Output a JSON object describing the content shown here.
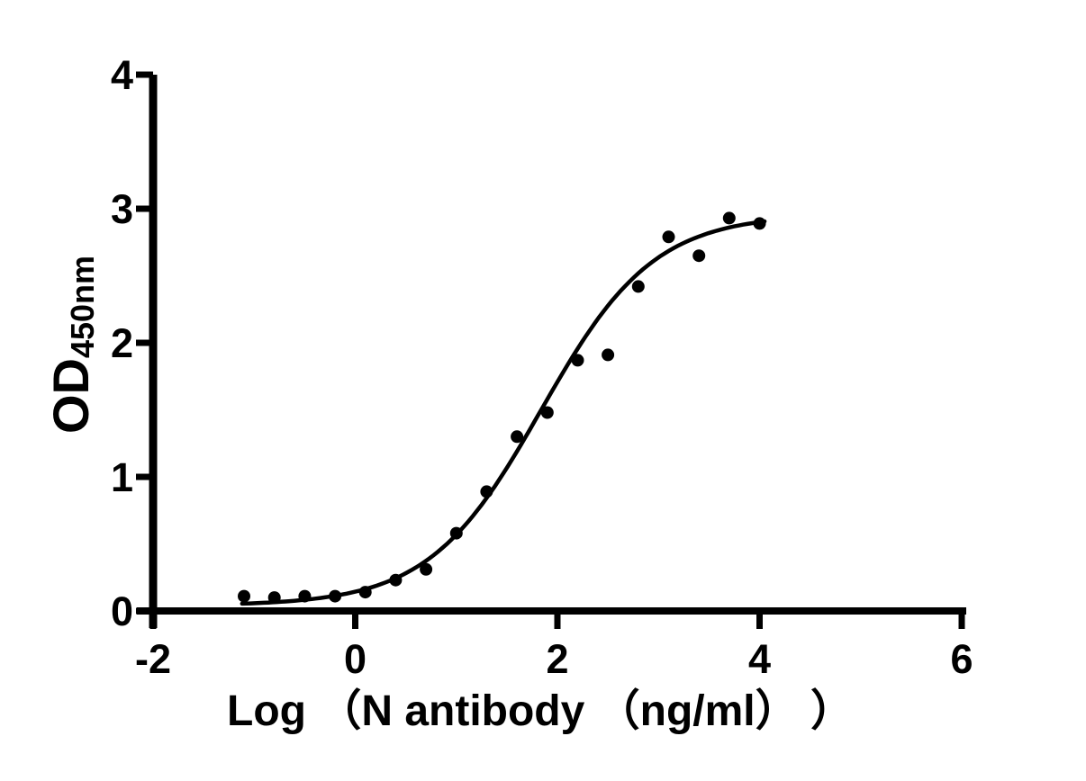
{
  "figure": {
    "background_color": "#ffffff",
    "ink_color": "#000000"
  },
  "chart_data": {
    "type": "scatter",
    "subtype": "sigmoidal-dose-response-fit",
    "title": "",
    "xlabel": "Log （N antibody （ng/ml） ）",
    "ylabel_main": "OD",
    "ylabel_sub": "450nm",
    "xlim": [
      -2,
      6
    ],
    "ylim": [
      0,
      4
    ],
    "x_ticks": [
      "-2",
      "0",
      "2",
      "4",
      "6"
    ],
    "x_tick_values": [
      -2,
      0,
      2,
      4,
      6
    ],
    "y_ticks": [
      "0",
      "1",
      "2",
      "3",
      "4"
    ],
    "y_tick_values": [
      0,
      1,
      2,
      3,
      4
    ],
    "grid": false,
    "legend": "none",
    "series": [
      {
        "marker": "filled-circle",
        "color": "#000000",
        "points": [
          [
            -1.1,
            0.11
          ],
          [
            -0.8,
            0.1
          ],
          [
            -0.5,
            0.11
          ],
          [
            -0.2,
            0.11
          ],
          [
            0.1,
            0.14
          ],
          [
            0.4,
            0.23
          ],
          [
            0.7,
            0.31
          ],
          [
            1.0,
            0.58
          ],
          [
            1.3,
            0.89
          ],
          [
            1.6,
            1.3
          ],
          [
            1.9,
            1.48
          ],
          [
            2.2,
            1.87
          ],
          [
            2.5,
            1.91
          ],
          [
            2.8,
            2.42
          ],
          [
            3.1,
            2.79
          ],
          [
            3.4,
            2.65
          ],
          [
            3.7,
            2.93
          ],
          [
            4.0,
            2.89
          ]
        ]
      }
    ],
    "fit_curve": {
      "model": "four-parameter-logistic",
      "bottom": 0.04,
      "top": 2.96,
      "log_ec50": 1.84,
      "hill_slope": 0.78,
      "x_range": [
        -1.12,
        4.05
      ],
      "color": "#000000"
    }
  }
}
